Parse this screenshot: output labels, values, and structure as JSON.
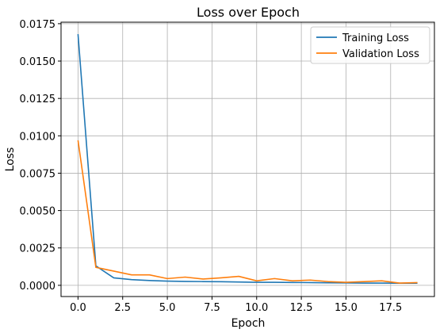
{
  "chart_data": {
    "type": "line",
    "title": "Loss over Epoch",
    "xlabel": "Epoch",
    "ylabel": "Loss",
    "xlim": [
      -0.95,
      19.95
    ],
    "ylim": [
      -0.00075,
      0.0176
    ],
    "xticks": [
      0.0,
      2.5,
      5.0,
      7.5,
      10.0,
      12.5,
      15.0,
      17.5
    ],
    "xtick_labels": [
      "0.0",
      "2.5",
      "5.0",
      "7.5",
      "10.0",
      "12.5",
      "15.0",
      "17.5"
    ],
    "yticks": [
      0.0,
      0.0025,
      0.005,
      0.0075,
      0.01,
      0.0125,
      0.015,
      0.0175
    ],
    "ytick_labels": [
      "0.0000",
      "0.0025",
      "0.0050",
      "0.0075",
      "0.0100",
      "0.0125",
      "0.0150",
      "0.0175"
    ],
    "grid": true,
    "legend_position": "top-right",
    "x": [
      0,
      1,
      2,
      3,
      4,
      5,
      6,
      7,
      8,
      9,
      10,
      11,
      12,
      13,
      14,
      15,
      16,
      17,
      18,
      19
    ],
    "series": [
      {
        "name": "Training Loss",
        "color": "#1f77b4",
        "values": [
          0.0168,
          0.0013,
          0.0005,
          0.00038,
          0.00032,
          0.00028,
          0.00026,
          0.00025,
          0.00024,
          0.00022,
          0.0002,
          0.0002,
          0.00019,
          0.00018,
          0.00017,
          0.00016,
          0.00015,
          0.00015,
          0.00014,
          0.00014
        ]
      },
      {
        "name": "Validation Loss",
        "color": "#ff7f0e",
        "values": [
          0.0097,
          0.0012,
          0.00095,
          0.0007,
          0.0007,
          0.00045,
          0.00055,
          0.00042,
          0.0005,
          0.0006,
          0.0003,
          0.00045,
          0.0003,
          0.00035,
          0.00025,
          0.0002,
          0.00025,
          0.0003,
          0.00015,
          0.00018
        ]
      }
    ]
  }
}
